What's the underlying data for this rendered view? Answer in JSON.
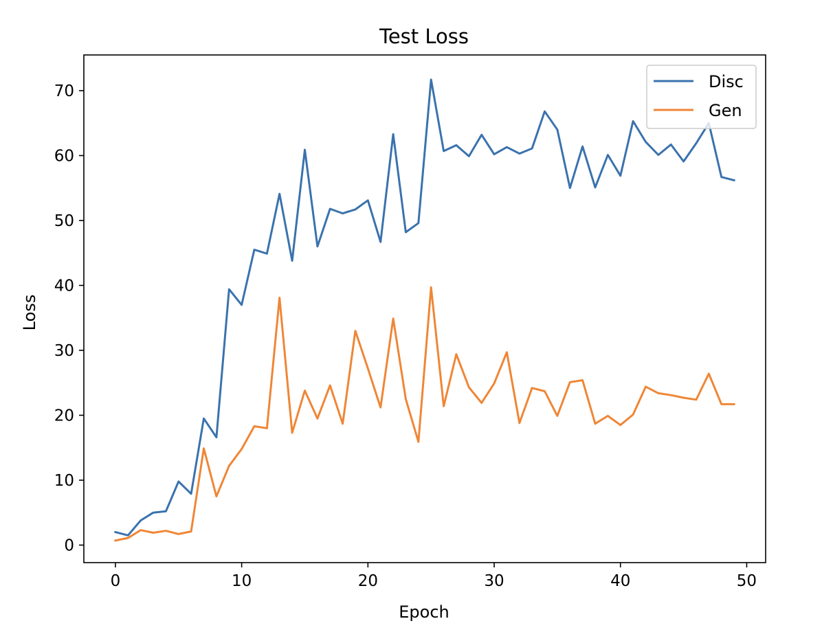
{
  "chart_data": {
    "type": "line",
    "title": "Test Loss",
    "xlabel": "Epoch",
    "ylabel": "Loss",
    "xlim": [
      -2.5,
      51.5
    ],
    "ylim": [
      -2.7,
      75.5
    ],
    "xticks": [
      0,
      10,
      20,
      30,
      40,
      50
    ],
    "yticks": [
      0,
      10,
      20,
      30,
      40,
      50,
      60,
      70
    ],
    "grid": false,
    "legend_position": "top-right",
    "x": [
      0,
      1,
      2,
      3,
      4,
      5,
      6,
      7,
      8,
      9,
      10,
      11,
      12,
      13,
      14,
      15,
      16,
      17,
      18,
      19,
      20,
      21,
      22,
      23,
      24,
      25,
      26,
      27,
      28,
      29,
      30,
      31,
      32,
      33,
      34,
      35,
      36,
      37,
      38,
      39,
      40,
      41,
      42,
      43,
      44,
      45,
      46,
      47,
      48,
      49
    ],
    "series": [
      {
        "name": "Disc",
        "color": "#3a72ad",
        "values": [
          2.0,
          1.5,
          3.8,
          5.0,
          5.2,
          9.8,
          7.9,
          19.5,
          16.6,
          39.4,
          37.0,
          45.5,
          44.9,
          54.1,
          43.8,
          60.9,
          46.0,
          51.8,
          51.1,
          51.7,
          53.1,
          46.7,
          63.3,
          48.2,
          49.6,
          71.7,
          60.7,
          61.6,
          59.9,
          63.2,
          60.2,
          61.3,
          60.3,
          61.1,
          66.8,
          64.0,
          55.0,
          61.4,
          55.1,
          60.1,
          56.9,
          65.3,
          62.1,
          60.1,
          61.7,
          59.1,
          61.9,
          65.0,
          56.7,
          56.2
        ]
      },
      {
        "name": "Gen",
        "color": "#ef8636",
        "values": [
          0.7,
          1.1,
          2.3,
          1.9,
          2.2,
          1.7,
          2.1,
          14.9,
          7.5,
          12.2,
          14.8,
          18.3,
          18.0,
          38.1,
          17.3,
          23.8,
          19.5,
          24.6,
          18.7,
          33.0,
          27.2,
          21.2,
          34.9,
          22.5,
          15.9,
          39.7,
          21.4,
          29.4,
          24.3,
          21.9,
          24.9,
          29.7,
          18.8,
          24.2,
          23.7,
          19.9,
          25.1,
          25.4,
          18.7,
          19.9,
          18.5,
          20.1,
          24.4,
          23.4,
          23.1,
          22.7,
          22.4,
          26.4,
          21.7,
          21.7
        ]
      }
    ]
  }
}
